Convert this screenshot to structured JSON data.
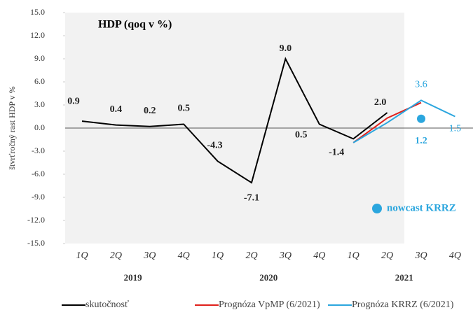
{
  "chart_data": {
    "type": "line",
    "title": "HDP (qoq v %)",
    "y_label": "štvrťročný rast HDP v %",
    "categories": [
      "1Q",
      "2Q",
      "3Q",
      "4Q",
      "1Q",
      "2Q",
      "3Q",
      "4Q",
      "1Q",
      "2Q",
      "3Q",
      "4Q"
    ],
    "groups": [
      "2019",
      "2020",
      "2021"
    ],
    "ylim": [
      -15,
      15
    ],
    "yticks": [
      {
        "value": 15,
        "label": "15.0"
      },
      {
        "value": 12,
        "label": "12.0"
      },
      {
        "value": 9,
        "label": "9.0"
      },
      {
        "value": 6,
        "label": "6.0"
      },
      {
        "value": 3,
        "label": "3.0"
      },
      {
        "value": 0,
        "label": "0.0"
      },
      {
        "value": -3,
        "label": "-3.0"
      },
      {
        "value": -6,
        "label": "-6.0"
      },
      {
        "value": -9,
        "label": "-9.0"
      },
      {
        "value": -12,
        "label": "-12.0"
      },
      {
        "value": -15,
        "label": "-15.0"
      }
    ],
    "series": [
      {
        "name": "skutočnosť",
        "color": "#000000",
        "values": [
          0.9,
          0.4,
          0.2,
          0.5,
          -4.3,
          -7.1,
          9.0,
          0.5,
          -1.4,
          2.0,
          null,
          null
        ],
        "value_labels": [
          "0.9",
          "0.4",
          "0.2",
          "0.5",
          "-4.3",
          "-7.1",
          "9.0",
          "0.5",
          "-1.4",
          "2.0",
          null,
          null
        ]
      },
      {
        "name": "Prognóza VpMP (6/2021)",
        "color": "#e0201b",
        "values": [
          null,
          null,
          null,
          null,
          null,
          null,
          null,
          null,
          -1.9,
          1.3,
          3.3,
          null
        ]
      },
      {
        "name": "Prognóza KRRZ (6/2021)",
        "color": "#2ba6de",
        "values": [
          null,
          null,
          null,
          null,
          null,
          null,
          null,
          null,
          -1.9,
          0.7,
          3.6,
          1.5
        ],
        "value_labels": [
          null,
          null,
          null,
          null,
          null,
          null,
          null,
          null,
          null,
          null,
          "3.6",
          "1.5"
        ]
      }
    ],
    "markers": [
      {
        "name": "nowcast KRRZ",
        "color": "#2ba6de",
        "values": [
          null,
          null,
          null,
          null,
          null,
          null,
          null,
          null,
          null,
          null,
          1.2,
          null
        ],
        "value_labels": [
          null,
          null,
          null,
          null,
          null,
          null,
          null,
          null,
          null,
          null,
          "1.2",
          null
        ]
      }
    ]
  }
}
